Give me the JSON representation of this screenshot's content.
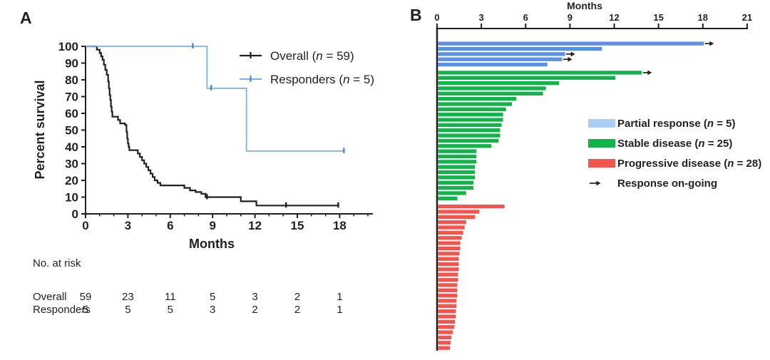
{
  "figure": {
    "panel_a_label": "A",
    "panel_b_label": "B"
  },
  "panel_a": {
    "risk_table": {
      "title": "No. at risk",
      "timepoints": [
        0,
        3,
        6,
        9,
        12,
        15,
        18
      ],
      "rows": [
        {
          "label": "Overall",
          "values": [
            59,
            23,
            11,
            5,
            3,
            2,
            1
          ]
        },
        {
          "label": "Responders",
          "values": [
            5,
            5,
            5,
            3,
            2,
            2,
            1
          ]
        }
      ]
    }
  },
  "chart_data": [
    {
      "type": "line",
      "subtype": "kaplan-meier",
      "title": "",
      "xlabel": "Months",
      "ylabel": "Percent survival",
      "xlim": [
        0,
        20.5
      ],
      "ylim": [
        0,
        100
      ],
      "x_ticks": [
        0,
        3,
        6,
        9,
        12,
        15,
        18
      ],
      "y_ticks": [
        0,
        10,
        20,
        30,
        40,
        50,
        60,
        70,
        80,
        90,
        100
      ],
      "grid": false,
      "legend_position": "upper-right",
      "series": [
        {
          "name": "Overall (n = 59)",
          "color": "#231f20",
          "censor_color": "#231f20",
          "steps": [
            [
              0,
              100
            ],
            [
              0.8,
              100
            ],
            [
              0.8,
              98
            ],
            [
              1.0,
              98
            ],
            [
              1.0,
              96
            ],
            [
              1.1,
              96
            ],
            [
              1.1,
              94
            ],
            [
              1.2,
              94
            ],
            [
              1.2,
              92
            ],
            [
              1.3,
              92
            ],
            [
              1.3,
              89
            ],
            [
              1.4,
              89
            ],
            [
              1.4,
              86
            ],
            [
              1.5,
              86
            ],
            [
              1.5,
              83
            ],
            [
              1.6,
              83
            ],
            [
              1.6,
              79
            ],
            [
              1.65,
              79
            ],
            [
              1.65,
              75
            ],
            [
              1.7,
              75
            ],
            [
              1.7,
              71
            ],
            [
              1.75,
              71
            ],
            [
              1.75,
              68
            ],
            [
              1.8,
              68
            ],
            [
              1.8,
              64
            ],
            [
              1.85,
              64
            ],
            [
              1.85,
              61
            ],
            [
              1.9,
              61
            ],
            [
              1.9,
              58
            ],
            [
              2.3,
              58
            ],
            [
              2.3,
              56
            ],
            [
              2.45,
              56
            ],
            [
              2.45,
              54
            ],
            [
              2.8,
              54
            ],
            [
              2.8,
              53
            ],
            [
              2.9,
              53
            ],
            [
              2.9,
              49
            ],
            [
              2.95,
              49
            ],
            [
              2.95,
              45
            ],
            [
              3.0,
              45
            ],
            [
              3.0,
              42
            ],
            [
              3.05,
              42
            ],
            [
              3.05,
              40
            ],
            [
              3.1,
              40
            ],
            [
              3.1,
              38
            ],
            [
              3.7,
              38
            ],
            [
              3.7,
              36
            ],
            [
              3.85,
              36
            ],
            [
              3.85,
              34
            ],
            [
              4.0,
              34
            ],
            [
              4.0,
              32
            ],
            [
              4.15,
              32
            ],
            [
              4.15,
              30
            ],
            [
              4.3,
              30
            ],
            [
              4.3,
              28
            ],
            [
              4.45,
              28
            ],
            [
              4.45,
              26
            ],
            [
              4.6,
              26
            ],
            [
              4.6,
              24
            ],
            [
              4.75,
              24
            ],
            [
              4.75,
              22
            ],
            [
              4.9,
              22
            ],
            [
              4.9,
              20
            ],
            [
              5.1,
              20
            ],
            [
              5.1,
              18.5
            ],
            [
              5.3,
              18.5
            ],
            [
              5.3,
              17
            ],
            [
              7.0,
              17
            ],
            [
              7.0,
              15.5
            ],
            [
              7.4,
              15.5
            ],
            [
              7.4,
              14
            ],
            [
              7.8,
              14
            ],
            [
              7.8,
              13
            ],
            [
              8.2,
              13
            ],
            [
              8.2,
              12
            ],
            [
              8.5,
              12
            ],
            [
              8.5,
              10
            ],
            [
              11.0,
              10
            ],
            [
              11.0,
              7.5
            ],
            [
              12.1,
              7.5
            ],
            [
              12.1,
              5
            ],
            [
              17.9,
              5
            ]
          ],
          "censor_marks": [
            [
              8.6,
              10
            ],
            [
              14.2,
              5
            ],
            [
              17.9,
              5
            ]
          ]
        },
        {
          "name": "Responders (n = 5)",
          "color": "#7fb1e8",
          "censor_color": "#4a86c8",
          "steps": [
            [
              0,
              100
            ],
            [
              8.6,
              100
            ],
            [
              8.6,
              75
            ],
            [
              11.4,
              75
            ],
            [
              11.4,
              37.5
            ],
            [
              18.3,
              37.5
            ]
          ],
          "censor_marks": [
            [
              7.6,
              100
            ],
            [
              8.9,
              75
            ],
            [
              18.3,
              37.5
            ]
          ]
        }
      ]
    },
    {
      "type": "bar",
      "subtype": "swimmer",
      "orientation": "horizontal",
      "xlabel": "Months",
      "xlim": [
        0,
        21
      ],
      "x_ticks": [
        0,
        3,
        6,
        9,
        12,
        15,
        18,
        21
      ],
      "arrow_legend": "Response on-going",
      "groups": [
        {
          "name": "Partial response (n = 5)",
          "color": "#5b90e2",
          "legend_color": "#a9cdf4",
          "bars": [
            {
              "months": 18.0,
              "ongoing": true
            },
            {
              "months": 11.1,
              "ongoing": false
            },
            {
              "months": 8.6,
              "ongoing": true
            },
            {
              "months": 8.4,
              "ongoing": true
            },
            {
              "months": 7.4,
              "ongoing": false
            }
          ]
        },
        {
          "name": "Stable disease (n = 25)",
          "color": "#13b24a",
          "legend_color": "#13b24a",
          "bars": [
            {
              "months": 13.8,
              "ongoing": true
            },
            {
              "months": 12.0,
              "ongoing": false
            },
            {
              "months": 8.2,
              "ongoing": false
            },
            {
              "months": 7.3,
              "ongoing": false
            },
            {
              "months": 7.1,
              "ongoing": false
            },
            {
              "months": 5.3,
              "ongoing": false
            },
            {
              "months": 5.0,
              "ongoing": false
            },
            {
              "months": 4.6,
              "ongoing": false
            },
            {
              "months": 4.4,
              "ongoing": false
            },
            {
              "months": 4.4,
              "ongoing": false
            },
            {
              "months": 4.3,
              "ongoing": false
            },
            {
              "months": 4.2,
              "ongoing": false
            },
            {
              "months": 4.2,
              "ongoing": false
            },
            {
              "months": 4.1,
              "ongoing": false
            },
            {
              "months": 3.6,
              "ongoing": false
            },
            {
              "months": 2.6,
              "ongoing": false
            },
            {
              "months": 2.6,
              "ongoing": false
            },
            {
              "months": 2.6,
              "ongoing": false
            },
            {
              "months": 2.5,
              "ongoing": false
            },
            {
              "months": 2.5,
              "ongoing": false
            },
            {
              "months": 2.5,
              "ongoing": false
            },
            {
              "months": 2.4,
              "ongoing": false
            },
            {
              "months": 2.4,
              "ongoing": false
            },
            {
              "months": 1.9,
              "ongoing": false
            },
            {
              "months": 1.3,
              "ongoing": false
            }
          ]
        },
        {
          "name": "Progressive disease (n = 28)",
          "color": "#f2544e",
          "legend_color": "#f2544e",
          "bars": [
            {
              "months": 4.5,
              "ongoing": false
            },
            {
              "months": 2.8,
              "ongoing": false
            },
            {
              "months": 2.5,
              "ongoing": false
            },
            {
              "months": 1.9,
              "ongoing": false
            },
            {
              "months": 1.8,
              "ongoing": false
            },
            {
              "months": 1.7,
              "ongoing": false
            },
            {
              "months": 1.6,
              "ongoing": false
            },
            {
              "months": 1.5,
              "ongoing": false
            },
            {
              "months": 1.5,
              "ongoing": false
            },
            {
              "months": 1.45,
              "ongoing": false
            },
            {
              "months": 1.4,
              "ongoing": false
            },
            {
              "months": 1.4,
              "ongoing": false
            },
            {
              "months": 1.4,
              "ongoing": false
            },
            {
              "months": 1.35,
              "ongoing": false
            },
            {
              "months": 1.35,
              "ongoing": false
            },
            {
              "months": 1.3,
              "ongoing": false
            },
            {
              "months": 1.3,
              "ongoing": false
            },
            {
              "months": 1.3,
              "ongoing": false
            },
            {
              "months": 1.25,
              "ongoing": false
            },
            {
              "months": 1.25,
              "ongoing": false
            },
            {
              "months": 1.2,
              "ongoing": false
            },
            {
              "months": 1.2,
              "ongoing": false
            },
            {
              "months": 1.15,
              "ongoing": false
            },
            {
              "months": 1.1,
              "ongoing": false
            },
            {
              "months": 1.0,
              "ongoing": false
            },
            {
              "months": 0.9,
              "ongoing": false
            },
            {
              "months": 0.85,
              "ongoing": false
            },
            {
              "months": 0.8,
              "ongoing": false
            }
          ]
        }
      ]
    }
  ]
}
